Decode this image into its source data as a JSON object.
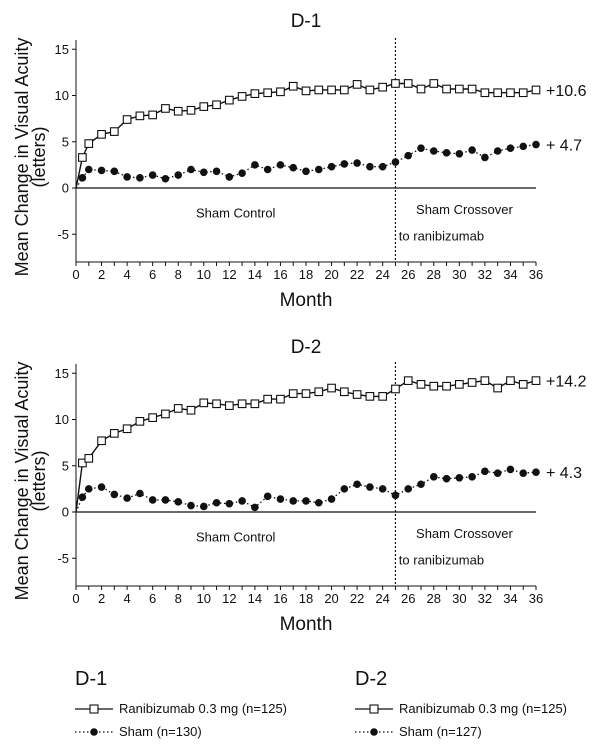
{
  "chart_data": [
    {
      "type": "line",
      "title": "D-1",
      "ylabel": "Mean Change in Visual Acuity (letters)",
      "xlabel": "Month",
      "xlim": [
        0,
        36
      ],
      "ylim": [
        -8,
        16
      ],
      "xticks": [
        0,
        2,
        4,
        6,
        8,
        10,
        12,
        14,
        16,
        18,
        20,
        22,
        24,
        26,
        28,
        30,
        32,
        34,
        36
      ],
      "yticks": [
        -5,
        0,
        5,
        10,
        15
      ],
      "crossover_month": 25,
      "region_labels": [
        "Sham Control",
        "Sham Crossover\nto ranibizumab"
      ],
      "end_labels": [
        "+10.6",
        "+ 4.7"
      ],
      "series": [
        {
          "name": "Ranibizumab 0.3 mg (n=125)",
          "x": [
            0,
            0.5,
            1,
            2,
            3,
            4,
            5,
            6,
            7,
            8,
            9,
            10,
            11,
            12,
            13,
            14,
            15,
            16,
            17,
            18,
            19,
            20,
            21,
            22,
            23,
            24,
            25,
            26,
            27,
            28,
            29,
            30,
            31,
            32,
            33,
            34,
            35,
            36
          ],
          "values": [
            0,
            3.3,
            4.8,
            5.8,
            6.1,
            7.4,
            7.8,
            7.9,
            8.6,
            8.3,
            8.4,
            8.8,
            9.0,
            9.5,
            9.9,
            10.2,
            10.3,
            10.4,
            11.0,
            10.5,
            10.6,
            10.6,
            10.6,
            11.2,
            10.6,
            10.9,
            11.3,
            11.3,
            10.7,
            11.3,
            10.7,
            10.7,
            10.7,
            10.3,
            10.3,
            10.3,
            10.3,
            10.6
          ]
        },
        {
          "name": "Sham (n=130)",
          "x": [
            0,
            0.5,
            1,
            2,
            3,
            4,
            5,
            6,
            7,
            8,
            9,
            10,
            11,
            12,
            13,
            14,
            15,
            16,
            17,
            18,
            19,
            20,
            21,
            22,
            23,
            24,
            25,
            26,
            27,
            28,
            29,
            30,
            31,
            32,
            33,
            34,
            35,
            36
          ],
          "values": [
            0,
            1.1,
            2.0,
            1.9,
            1.8,
            1.2,
            1.1,
            1.4,
            1.0,
            1.4,
            2.0,
            1.7,
            1.8,
            1.2,
            1.6,
            2.5,
            2.0,
            2.5,
            2.2,
            1.8,
            2.0,
            2.3,
            2.6,
            2.7,
            2.3,
            2.3,
            2.8,
            3.5,
            4.3,
            4.0,
            3.8,
            3.7,
            4.1,
            3.3,
            4.0,
            4.3,
            4.5,
            4.7
          ]
        }
      ]
    },
    {
      "type": "line",
      "title": "D-2",
      "ylabel": "Mean Change in Visual Acuity (letters)",
      "xlabel": "Month",
      "xlim": [
        0,
        36
      ],
      "ylim": [
        -8,
        16
      ],
      "xticks": [
        0,
        2,
        4,
        6,
        8,
        10,
        12,
        14,
        16,
        18,
        20,
        22,
        24,
        26,
        28,
        30,
        32,
        34,
        36
      ],
      "yticks": [
        -5,
        0,
        5,
        10,
        15
      ],
      "crossover_month": 25,
      "region_labels": [
        "Sham Control",
        "Sham Crossover\nto ranibizumab"
      ],
      "end_labels": [
        "+14.2",
        "+ 4.3"
      ],
      "series": [
        {
          "name": "Ranibizumab 0.3 mg (n=125)",
          "x": [
            0,
            0.5,
            1,
            2,
            3,
            4,
            5,
            6,
            7,
            8,
            9,
            10,
            11,
            12,
            13,
            14,
            15,
            16,
            17,
            18,
            19,
            20,
            21,
            22,
            23,
            24,
            25,
            26,
            27,
            28,
            29,
            30,
            31,
            32,
            33,
            34,
            35,
            36
          ],
          "values": [
            0,
            5.3,
            5.8,
            7.7,
            8.5,
            9.0,
            9.8,
            10.2,
            10.6,
            11.2,
            11.0,
            11.8,
            11.7,
            11.5,
            11.7,
            11.7,
            12.2,
            12.2,
            12.8,
            12.8,
            13.0,
            13.4,
            13.0,
            12.7,
            12.5,
            12.5,
            13.3,
            14.2,
            13.8,
            13.6,
            13.6,
            13.8,
            14.0,
            14.2,
            13.4,
            14.2,
            13.8,
            14.2
          ]
        },
        {
          "name": "Sham (n=127)",
          "x": [
            0,
            0.5,
            1,
            2,
            3,
            4,
            5,
            6,
            7,
            8,
            9,
            10,
            11,
            12,
            13,
            14,
            15,
            16,
            17,
            18,
            19,
            20,
            21,
            22,
            23,
            24,
            25,
            26,
            27,
            28,
            29,
            30,
            31,
            32,
            33,
            34,
            35,
            36
          ],
          "values": [
            0,
            1.6,
            2.5,
            2.7,
            1.9,
            1.5,
            2.0,
            1.3,
            1.3,
            1.1,
            0.7,
            0.6,
            1.0,
            0.9,
            1.2,
            0.5,
            1.7,
            1.4,
            1.2,
            1.2,
            1.0,
            1.4,
            2.5,
            3.0,
            2.7,
            2.5,
            1.8,
            2.5,
            3.0,
            3.8,
            3.6,
            3.7,
            3.8,
            4.4,
            4.2,
            4.6,
            4.2,
            4.3
          ]
        }
      ]
    }
  ],
  "legend": [
    {
      "title": "D-1",
      "items": [
        "Ranibizumab 0.3 mg (n=125)",
        "Sham (n=130)"
      ]
    },
    {
      "title": "D-2",
      "items": [
        "Ranibizumab 0.3 mg (n=125)",
        "Sham (n=127)"
      ]
    }
  ]
}
